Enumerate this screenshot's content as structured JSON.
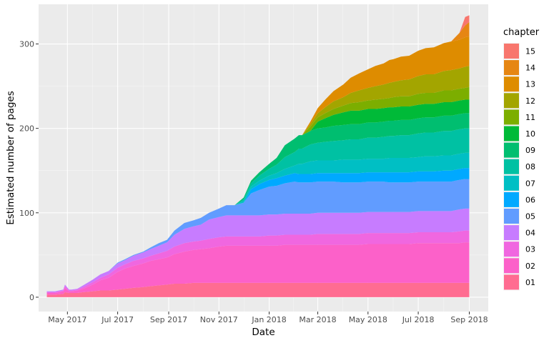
{
  "chart_data": {
    "type": "area",
    "stacked": true,
    "xlabel": "Date",
    "ylabel": "Estimated number of pages",
    "x_ticks": [
      "May 2017",
      "Jul 2017",
      "Sep 2017",
      "Nov 2017",
      "Jan 2018",
      "Mar 2018",
      "May 2018",
      "Jul 2018",
      "Sep 2018"
    ],
    "x_tick_dates": [
      "2017-05-01",
      "2017-07-01",
      "2017-09-01",
      "2017-11-01",
      "2018-01-01",
      "2018-03-01",
      "2018-05-01",
      "2018-07-01",
      "2018-09-01"
    ],
    "xlim": [
      "2017-03-27",
      "2018-09-24"
    ],
    "y_ticks": [
      0,
      100,
      200,
      300
    ],
    "ylim": [
      -17,
      347
    ],
    "grid": true,
    "legend_title": "chapter",
    "legend_position": "right",
    "dates": [
      "2017-04-06",
      "2017-04-16",
      "2017-04-26",
      "2017-04-28",
      "2017-05-03",
      "2017-05-06",
      "2017-05-13",
      "2017-05-20",
      "2017-06-01",
      "2017-06-10",
      "2017-06-20",
      "2017-07-01",
      "2017-07-10",
      "2017-07-20",
      "2017-08-01",
      "2017-08-10",
      "2017-08-20",
      "2017-08-30",
      "2017-09-08",
      "2017-09-20",
      "2017-10-01",
      "2017-10-10",
      "2017-10-20",
      "2017-11-01",
      "2017-11-10",
      "2017-11-20",
      "2017-12-01",
      "2017-12-10",
      "2017-12-20",
      "2018-01-01",
      "2018-01-10",
      "2018-01-20",
      "2018-02-01",
      "2018-02-06",
      "2018-02-10",
      "2018-02-20",
      "2018-03-01",
      "2018-03-10",
      "2018-03-20",
      "2018-04-01",
      "2018-04-10",
      "2018-04-20",
      "2018-05-01",
      "2018-05-10",
      "2018-05-20",
      "2018-05-27",
      "2018-06-01",
      "2018-06-10",
      "2018-06-20",
      "2018-07-01",
      "2018-07-10",
      "2018-07-20",
      "2018-08-01",
      "2018-08-10",
      "2018-08-20",
      "2018-08-27",
      "2018-09-01"
    ],
    "series": [
      {
        "name": "01",
        "color": "#FF6C91",
        "values": [
          3,
          3,
          4,
          6,
          5,
          5,
          5,
          6,
          7,
          8,
          8,
          9,
          10,
          11,
          12,
          13,
          14,
          15,
          16,
          16,
          17,
          17,
          17,
          17,
          17,
          17,
          17,
          17,
          17,
          17,
          17,
          17,
          17,
          17,
          17,
          17,
          17,
          17,
          17,
          17,
          17,
          17,
          17,
          17,
          17,
          17,
          17,
          17,
          17,
          17,
          17,
          17,
          17,
          17,
          17,
          17,
          17
        ]
      },
      {
        "name": "02",
        "color": "#FC61C9",
        "values": [
          2,
          2,
          3,
          5,
          2,
          2,
          3,
          4,
          8,
          12,
          15,
          21,
          24,
          26,
          28,
          30,
          31,
          32,
          35,
          38,
          39,
          40,
          41,
          43,
          44,
          44,
          44,
          44,
          44,
          44,
          44,
          45,
          45,
          45,
          45,
          45,
          45,
          45,
          45,
          45,
          45,
          45,
          46,
          46,
          46,
          46,
          46,
          46,
          46,
          47,
          47,
          47,
          47,
          47,
          47,
          48,
          48
        ]
      },
      {
        "name": "03",
        "color": "#F067E0",
        "values": [
          1,
          1,
          1,
          2,
          1,
          1,
          1,
          2,
          3,
          3,
          4,
          5,
          5,
          6,
          6,
          6,
          7,
          8,
          9,
          10,
          10,
          10,
          11,
          11,
          11,
          11,
          11,
          11,
          11,
          12,
          12,
          12,
          12,
          12,
          12,
          12,
          13,
          13,
          13,
          13,
          13,
          13,
          13,
          13,
          13,
          13,
          13,
          13,
          13,
          13,
          13,
          13,
          13,
          13,
          14,
          14,
          14
        ]
      },
      {
        "name": "04",
        "color": "#C77CFF",
        "values": [
          1,
          1,
          1,
          2,
          1,
          1,
          1,
          2,
          3,
          4,
          4,
          5,
          5,
          6,
          7,
          8,
          9,
          10,
          14,
          17,
          18,
          19,
          23,
          24,
          25,
          25,
          25,
          25,
          25,
          25,
          25,
          25,
          25,
          25,
          25,
          25,
          25,
          25,
          25,
          25,
          25,
          25,
          25,
          25,
          25,
          25,
          25,
          25,
          25,
          25,
          25,
          25,
          25,
          25,
          26,
          26,
          26
        ]
      },
      {
        "name": "05",
        "color": "#619CFF",
        "values": [
          0,
          0,
          0,
          0,
          0,
          0,
          0,
          0,
          0,
          0,
          0,
          1,
          1,
          1,
          1,
          2,
          3,
          3,
          5,
          7,
          7,
          8,
          8,
          10,
          12,
          12,
          15,
          26,
          30,
          33,
          34,
          36,
          38,
          37,
          37,
          37,
          37,
          37,
          37,
          36,
          36,
          36,
          36,
          36,
          36,
          35,
          35,
          35,
          35,
          35,
          35,
          35,
          35,
          35,
          35,
          35,
          35
        ]
      },
      {
        "name": "06",
        "color": "#00A9FF",
        "values": [
          0,
          0,
          0,
          0,
          0,
          0,
          0,
          0,
          0,
          0,
          0,
          0,
          0,
          0,
          0,
          0,
          0,
          0,
          0,
          0,
          0,
          0,
          0,
          0,
          0,
          0,
          0,
          5,
          7,
          8,
          9,
          9,
          10,
          10,
          10,
          10,
          10,
          10,
          10,
          11,
          11,
          11,
          11,
          11,
          11,
          12,
          12,
          12,
          12,
          12,
          12,
          12,
          13,
          13,
          13,
          13,
          13
        ]
      },
      {
        "name": "07",
        "color": "#00BFC4",
        "values": [
          0,
          0,
          0,
          0,
          0,
          0,
          0,
          0,
          0,
          0,
          0,
          0,
          0,
          0,
          0,
          0,
          0,
          0,
          0,
          0,
          0,
          0,
          0,
          0,
          0,
          0,
          2,
          3,
          4,
          5,
          6,
          8,
          9,
          12,
          12,
          15,
          15,
          15,
          15,
          16,
          16,
          16,
          16,
          16,
          16,
          17,
          17,
          17,
          17,
          17,
          18,
          18,
          18,
          18,
          18,
          18,
          18
        ]
      },
      {
        "name": "08",
        "color": "#00C1A3",
        "values": [
          0,
          0,
          0,
          0,
          0,
          0,
          0,
          0,
          0,
          0,
          0,
          0,
          0,
          0,
          0,
          0,
          0,
          0,
          0,
          0,
          0,
          0,
          0,
          0,
          0,
          0,
          2,
          4,
          6,
          8,
          10,
          14,
          16,
          18,
          18,
          20,
          21,
          22,
          23,
          23,
          24,
          24,
          25,
          25,
          26,
          26,
          26,
          27,
          27,
          28,
          28,
          28,
          29,
          29,
          29,
          29,
          29
        ]
      },
      {
        "name": "09",
        "color": "#00BE70",
        "values": [
          0,
          0,
          0,
          0,
          0,
          0,
          0,
          0,
          0,
          0,
          0,
          0,
          0,
          0,
          0,
          0,
          0,
          0,
          0,
          0,
          0,
          0,
          0,
          0,
          0,
          0,
          2,
          3,
          4,
          6,
          8,
          14,
          16,
          16,
          16,
          16,
          17,
          17,
          18,
          18,
          18,
          18,
          18,
          18,
          18,
          18,
          18,
          18,
          18,
          18,
          18,
          18,
          18,
          18,
          18,
          18,
          18
        ]
      },
      {
        "name": "10",
        "color": "#00BA38",
        "values": [
          0,
          0,
          0,
          0,
          0,
          0,
          0,
          0,
          0,
          0,
          0,
          0,
          0,
          0,
          0,
          0,
          0,
          0,
          0,
          0,
          0,
          0,
          0,
          0,
          0,
          0,
          0,
          0,
          0,
          0,
          0,
          0,
          0,
          0,
          0,
          0,
          8,
          11,
          13,
          15,
          16,
          16,
          16,
          16,
          16,
          16,
          16,
          16,
          16,
          16,
          16,
          16,
          16,
          16,
          16,
          16,
          16
        ]
      },
      {
        "name": "11",
        "color": "#7CAE00",
        "values": [
          0,
          0,
          0,
          0,
          0,
          0,
          0,
          0,
          0,
          0,
          0,
          0,
          0,
          0,
          0,
          0,
          0,
          0,
          0,
          0,
          0,
          0,
          0,
          0,
          0,
          0,
          0,
          0,
          0,
          0,
          0,
          0,
          0,
          0,
          0,
          5,
          5,
          6,
          7,
          8,
          9,
          10,
          10,
          11,
          11,
          11,
          12,
          12,
          12,
          13,
          13,
          13,
          14,
          14,
          14,
          14,
          15
        ]
      },
      {
        "name": "12",
        "color": "#A3A500",
        "values": [
          0,
          0,
          0,
          0,
          0,
          0,
          0,
          0,
          0,
          0,
          0,
          0,
          0,
          0,
          0,
          0,
          0,
          0,
          0,
          0,
          0,
          0,
          0,
          0,
          0,
          0,
          0,
          0,
          0,
          0,
          0,
          0,
          0,
          0,
          0,
          3,
          5,
          7,
          9,
          10,
          12,
          14,
          15,
          16,
          17,
          18,
          18,
          19,
          20,
          21,
          22,
          22,
          23,
          24,
          24,
          25,
          25
        ]
      },
      {
        "name": "13",
        "color": "#DE8C00",
        "values": [
          0,
          0,
          0,
          0,
          0,
          0,
          0,
          0,
          0,
          0,
          0,
          0,
          0,
          0,
          0,
          0,
          0,
          0,
          0,
          0,
          0,
          0,
          0,
          0,
          0,
          0,
          0,
          0,
          0,
          0,
          0,
          0,
          0,
          0,
          0,
          3,
          6,
          9,
          12,
          15,
          18,
          20,
          22,
          24,
          25,
          27,
          27,
          28,
          28,
          30,
          31,
          32,
          33,
          34,
          34,
          35,
          35
        ]
      },
      {
        "name": "14",
        "color": "#E68613",
        "values": [
          0,
          0,
          0,
          0,
          0,
          0,
          0,
          0,
          0,
          0,
          0,
          0,
          0,
          0,
          0,
          0,
          0,
          0,
          0,
          0,
          0,
          0,
          0,
          0,
          0,
          0,
          0,
          0,
          0,
          0,
          0,
          0,
          0,
          0,
          0,
          0,
          0,
          0,
          0,
          0,
          0,
          0,
          0,
          0,
          0,
          0,
          0,
          0,
          0,
          0,
          0,
          0,
          0,
          0,
          8,
          14,
          17
        ]
      },
      {
        "name": "15",
        "color": "#F8766D",
        "values": [
          0,
          0,
          0,
          0,
          0,
          0,
          0,
          0,
          0,
          0,
          0,
          0,
          0,
          0,
          0,
          0,
          0,
          0,
          0,
          0,
          0,
          0,
          0,
          0,
          0,
          0,
          0,
          0,
          0,
          0,
          0,
          0,
          0,
          0,
          0,
          0,
          0,
          0,
          0,
          0,
          0,
          0,
          0,
          0,
          0,
          0,
          0,
          0,
          0,
          0,
          0,
          0,
          0,
          0,
          0,
          10,
          8
        ]
      }
    ]
  }
}
